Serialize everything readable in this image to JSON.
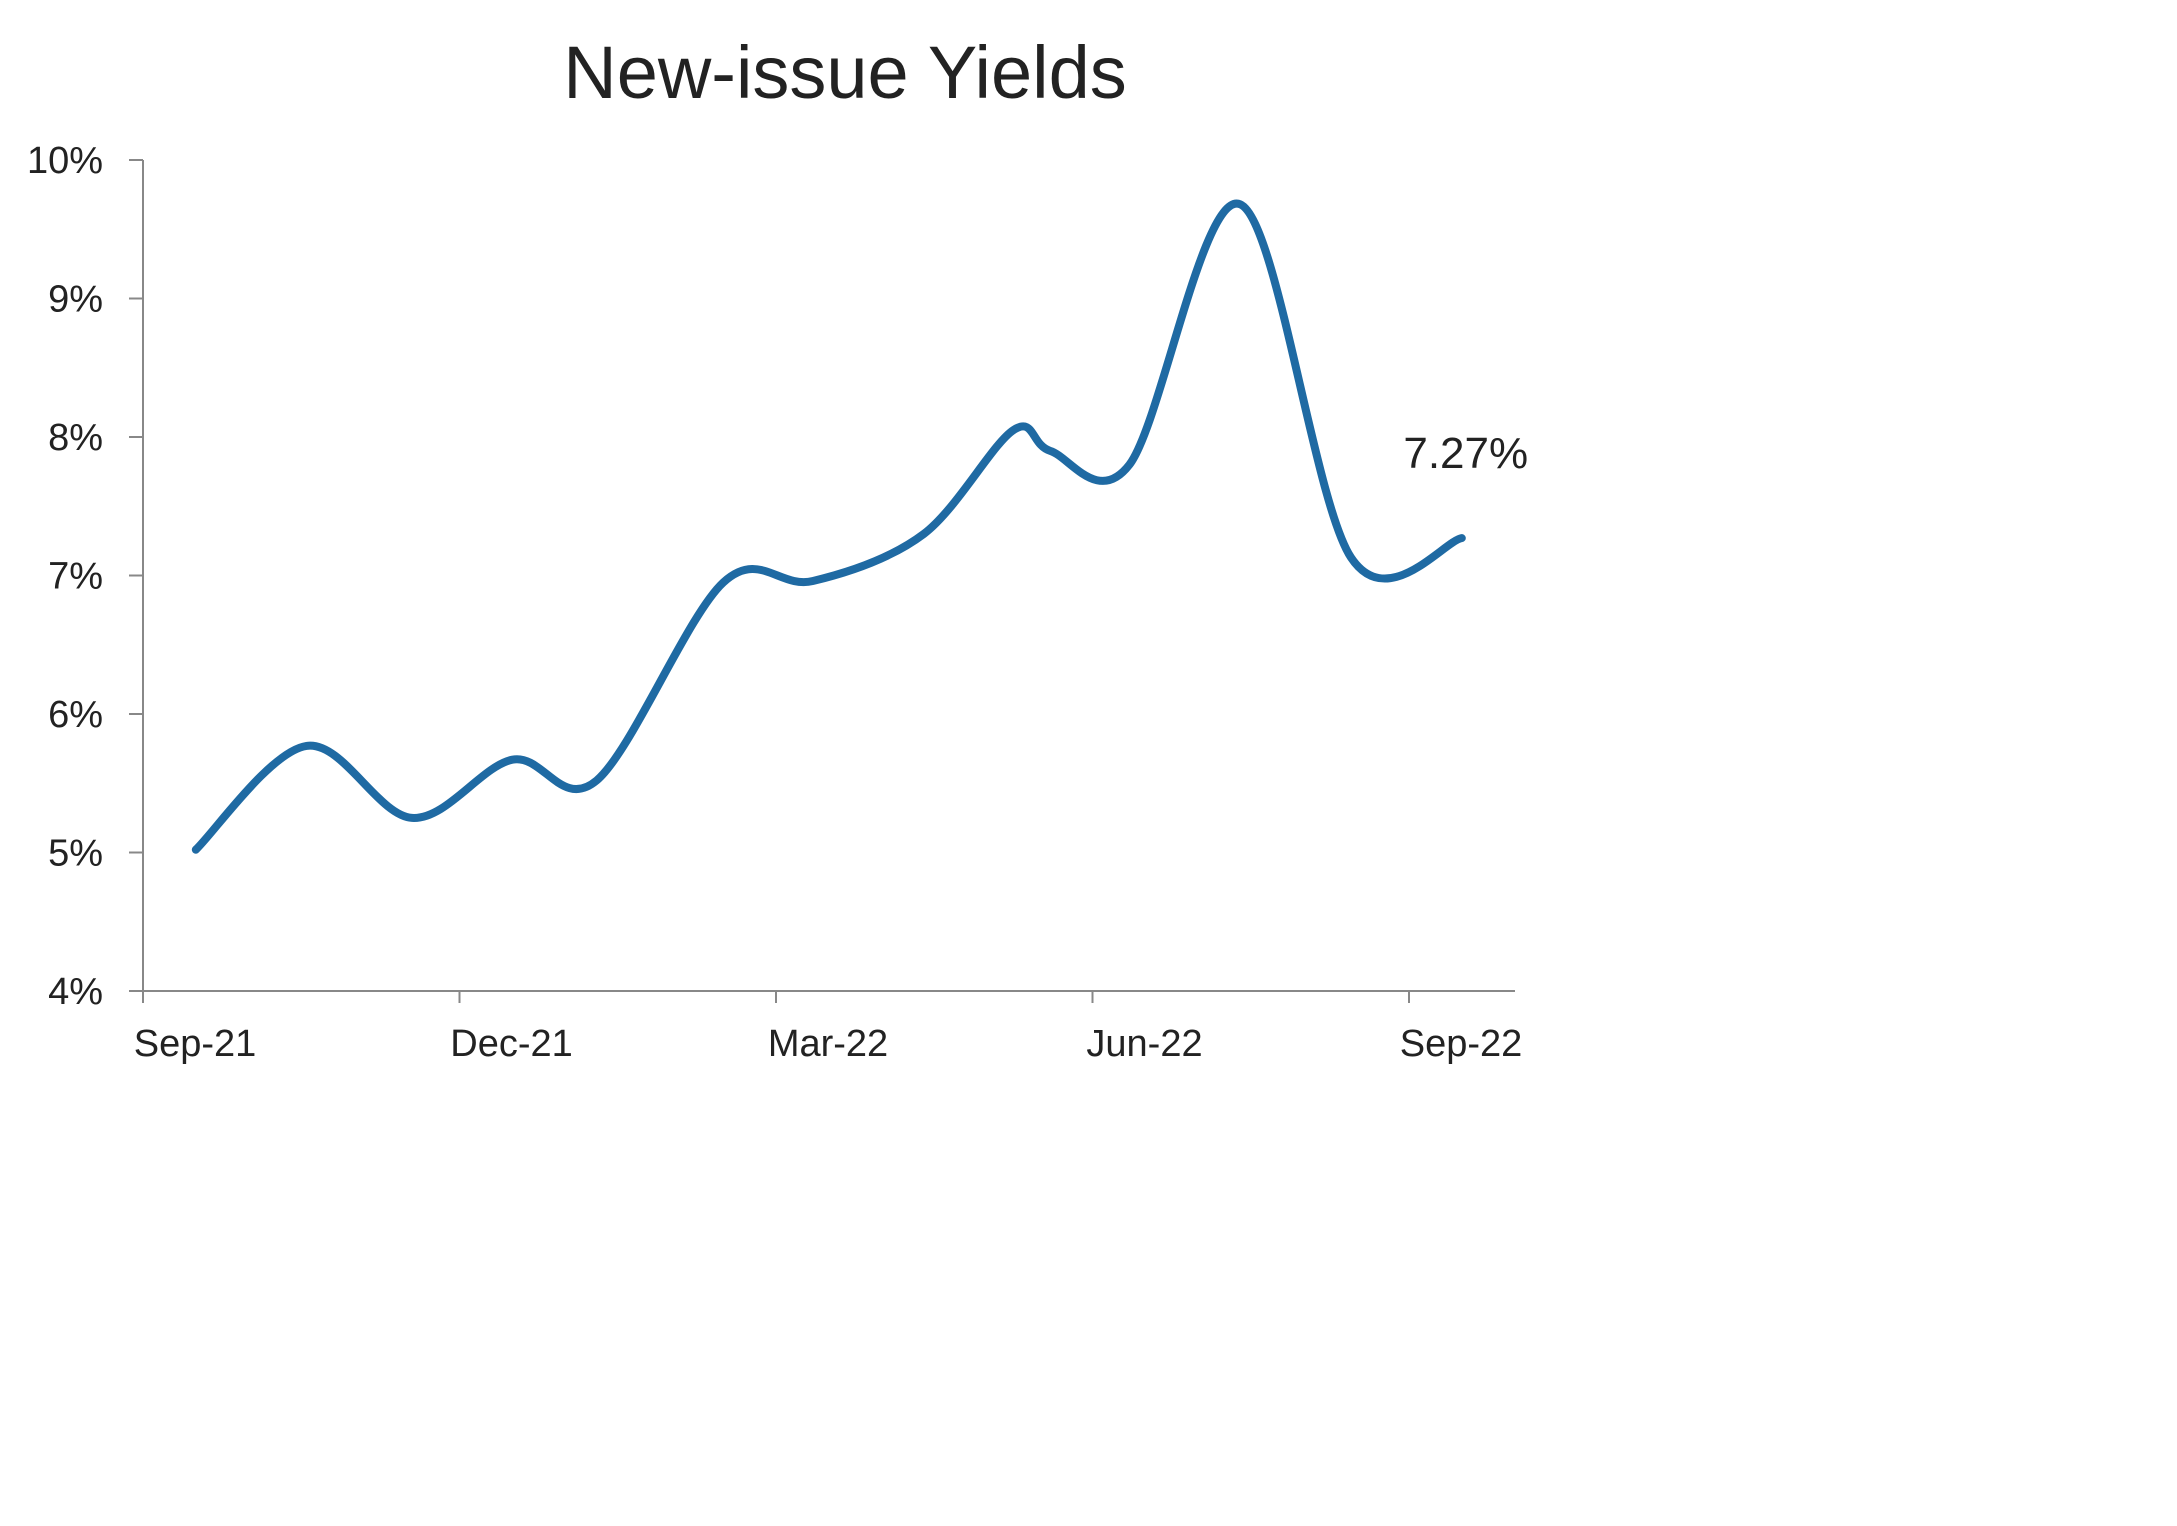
{
  "chart_data": {
    "type": "line",
    "title": "New-issue Yields",
    "xlabel": "",
    "ylabel": "",
    "ylim": [
      4,
      10
    ],
    "grid": false,
    "y_ticks": [
      4,
      5,
      6,
      7,
      8,
      9,
      10
    ],
    "y_tick_labels": [
      "4%",
      "5%",
      "6%",
      "7%",
      "8%",
      "9%",
      "10%"
    ],
    "x_ticks": [
      0,
      3,
      6,
      9,
      12
    ],
    "x_tick_labels": [
      "Sep-21",
      "Dec-21",
      "Mar-22",
      "Jun-22",
      "Sep-22"
    ],
    "series": [
      {
        "color": "#1f6aa3",
        "x": [
          0.5,
          1.55,
          2.55,
          3.5,
          4.3,
          5.5,
          6.35,
          7.4,
          8.25,
          8.6,
          9.35,
          10.4,
          11.45,
          12.5
        ],
        "y": [
          5.02,
          5.77,
          5.25,
          5.67,
          5.52,
          6.95,
          6.96,
          7.3,
          8.05,
          7.9,
          7.8,
          9.68,
          7.13,
          7.27
        ]
      }
    ],
    "annotations": [
      {
        "text": "7.27%",
        "x": 12.5,
        "y": 7.27
      }
    ]
  }
}
